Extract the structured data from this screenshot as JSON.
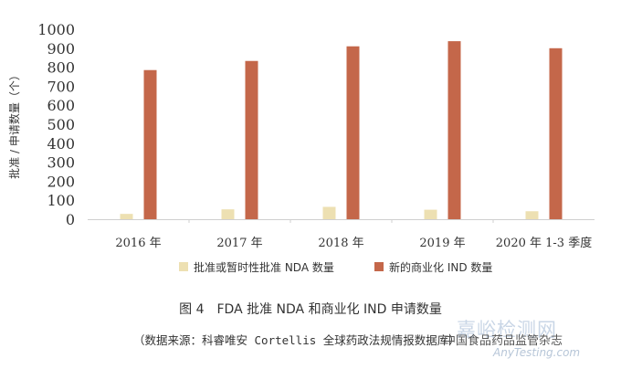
{
  "chart_data": {
    "type": "bar",
    "categories": [
      "2016 年",
      "2017 年",
      "2018 年",
      "2019 年",
      "2020 年 1-3 季度"
    ],
    "series": [
      {
        "name": "批准或暂时性批准 NDA 数量",
        "color": "#ede0b2",
        "values": [
          28,
          52,
          65,
          50,
          42
        ]
      },
      {
        "name": "新的商业化 IND 数量",
        "color": "#c4674a",
        "values": [
          785,
          833,
          910,
          937,
          900
        ]
      }
    ],
    "ylabel": "批准 / 申请数量（个）",
    "ylim": [
      0,
      1000
    ],
    "yticks": [
      0,
      100,
      200,
      300,
      400,
      500,
      600,
      700,
      800,
      900,
      1000
    ],
    "grid": false,
    "legend_position": "bottom"
  },
  "caption": "图 4　FDA 批准 NDA 和商业化 IND 申请数量",
  "source": "（数据来源：科睿唯安 Cortellis 全球药政法规情报数据库）",
  "watermark": {
    "brand": "嘉峪检测网",
    "url": "AnyTesting.com",
    "magazine": "中国食品药品监管杂志"
  }
}
